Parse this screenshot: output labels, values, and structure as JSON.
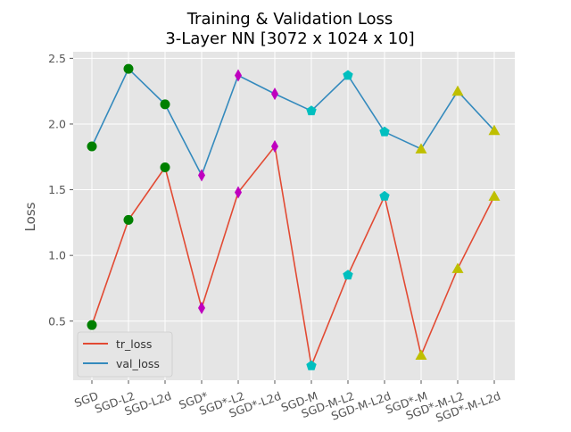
{
  "chart_data": {
    "type": "line",
    "title": "Training & Validation Loss",
    "subtitle": "3-Layer NN [3072 x 1024 x 10]",
    "xlabel": "",
    "ylabel": "Loss",
    "categories": [
      "SGD",
      "SGD-L2",
      "SGD-L2d",
      "SGD*",
      "SGD*-L2",
      "SGD*-L2d",
      "SGD-M",
      "SGD-M-L2",
      "SGD-M-L2d",
      "SGD*-M",
      "SGD*-M-L2",
      "SGD*-M-L2d"
    ],
    "ylim": [
      0.05,
      2.55
    ],
    "yticks": [
      0.5,
      1.0,
      1.5,
      2.0,
      2.5
    ],
    "ytick_labels": [
      "0.5",
      "1.0",
      "1.5",
      "2.0",
      "2.5"
    ],
    "grid": true,
    "legend_position": "lower-left",
    "series": [
      {
        "name": "tr_loss",
        "color": "#E24A33",
        "values": [
          0.47,
          1.27,
          1.67,
          0.6,
          1.48,
          1.83,
          0.16,
          0.85,
          1.45,
          0.24,
          0.9,
          1.45
        ]
      },
      {
        "name": "val_loss",
        "color": "#348ABD",
        "values": [
          1.83,
          2.42,
          2.15,
          1.61,
          2.37,
          2.23,
          2.1,
          2.37,
          1.94,
          1.81,
          2.25,
          1.95
        ]
      }
    ],
    "marker_groups": [
      {
        "indices": [
          0,
          1,
          2
        ],
        "marker": "circle",
        "color": "#008000"
      },
      {
        "indices": [
          3,
          4,
          5
        ],
        "marker": "diamond",
        "color": "#BF00BF"
      },
      {
        "indices": [
          6,
          7,
          8
        ],
        "marker": "pentagon",
        "color": "#00BFBF"
      },
      {
        "indices": [
          9,
          10,
          11
        ],
        "marker": "triangle",
        "color": "#BFBF00"
      }
    ]
  }
}
